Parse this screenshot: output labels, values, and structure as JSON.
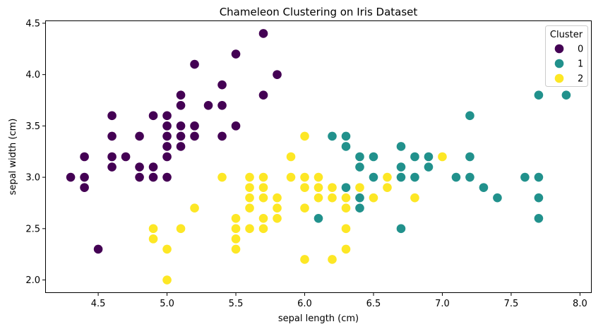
{
  "chart_data": {
    "type": "scatter",
    "title": "Chameleon Clustering on Iris Dataset",
    "xlabel": "sepal length (cm)",
    "ylabel": "sepal width (cm)",
    "xlim": [
      4.12,
      8.08
    ],
    "ylim": [
      1.88,
      4.52
    ],
    "xticks": [
      "4.5",
      "5.0",
      "5.5",
      "6.0",
      "6.5",
      "7.0",
      "7.5",
      "8.0"
    ],
    "yticks": [
      "2.0",
      "2.5",
      "3.0",
      "3.5",
      "4.0",
      "4.5"
    ],
    "grid": false,
    "legend": {
      "title": "Cluster",
      "position": "top-right"
    },
    "series": [
      {
        "name": "0",
        "color": "#440154",
        "points": [
          [
            4.3,
            3.0
          ],
          [
            4.4,
            2.9
          ],
          [
            4.4,
            3.0
          ],
          [
            4.4,
            3.2
          ],
          [
            4.5,
            2.3
          ],
          [
            4.6,
            3.1
          ],
          [
            4.6,
            3.2
          ],
          [
            4.6,
            3.4
          ],
          [
            4.6,
            3.6
          ],
          [
            4.7,
            3.2
          ],
          [
            4.8,
            3.0
          ],
          [
            4.8,
            3.1
          ],
          [
            4.8,
            3.4
          ],
          [
            4.9,
            3.0
          ],
          [
            4.9,
            3.1
          ],
          [
            4.9,
            3.6
          ],
          [
            5.0,
            3.0
          ],
          [
            5.0,
            3.2
          ],
          [
            5.0,
            3.3
          ],
          [
            5.0,
            3.4
          ],
          [
            5.0,
            3.5
          ],
          [
            5.0,
            3.6
          ],
          [
            5.1,
            3.3
          ],
          [
            5.1,
            3.4
          ],
          [
            5.1,
            3.5
          ],
          [
            5.1,
            3.7
          ],
          [
            5.1,
            3.8
          ],
          [
            5.2,
            3.4
          ],
          [
            5.2,
            3.5
          ],
          [
            5.2,
            4.1
          ],
          [
            5.3,
            3.7
          ],
          [
            5.4,
            3.4
          ],
          [
            5.4,
            3.7
          ],
          [
            5.4,
            3.9
          ],
          [
            5.5,
            3.5
          ],
          [
            5.5,
            4.2
          ],
          [
            5.7,
            3.8
          ],
          [
            5.7,
            4.4
          ],
          [
            5.8,
            4.0
          ]
        ]
      },
      {
        "name": "1",
        "color": "#21918c",
        "points": [
          [
            6.1,
            2.6
          ],
          [
            6.2,
            3.4
          ],
          [
            6.3,
            2.9
          ],
          [
            6.3,
            3.3
          ],
          [
            6.3,
            3.4
          ],
          [
            6.4,
            2.7
          ],
          [
            6.4,
            2.8
          ],
          [
            6.4,
            3.1
          ],
          [
            6.4,
            3.2
          ],
          [
            6.5,
            3.0
          ],
          [
            6.5,
            3.2
          ],
          [
            6.7,
            2.5
          ],
          [
            6.7,
            3.0
          ],
          [
            6.7,
            3.1
          ],
          [
            6.7,
            3.3
          ],
          [
            6.8,
            3.0
          ],
          [
            6.8,
            3.2
          ],
          [
            6.9,
            3.1
          ],
          [
            6.9,
            3.2
          ],
          [
            7.1,
            3.0
          ],
          [
            7.2,
            3.0
          ],
          [
            7.2,
            3.2
          ],
          [
            7.2,
            3.6
          ],
          [
            7.3,
            2.9
          ],
          [
            7.4,
            2.8
          ],
          [
            7.6,
            3.0
          ],
          [
            7.7,
            2.6
          ],
          [
            7.7,
            2.8
          ],
          [
            7.7,
            3.0
          ],
          [
            7.7,
            3.8
          ],
          [
            7.9,
            3.8
          ]
        ]
      },
      {
        "name": "2",
        "color": "#fde725",
        "points": [
          [
            4.9,
            2.4
          ],
          [
            4.9,
            2.5
          ],
          [
            5.0,
            2.0
          ],
          [
            5.0,
            2.3
          ],
          [
            5.1,
            2.5
          ],
          [
            5.2,
            2.7
          ],
          [
            5.4,
            3.0
          ],
          [
            5.5,
            2.3
          ],
          [
            5.5,
            2.4
          ],
          [
            5.5,
            2.5
          ],
          [
            5.5,
            2.6
          ],
          [
            5.6,
            2.5
          ],
          [
            5.6,
            2.7
          ],
          [
            5.6,
            2.8
          ],
          [
            5.6,
            2.9
          ],
          [
            5.6,
            3.0
          ],
          [
            5.7,
            2.5
          ],
          [
            5.7,
            2.6
          ],
          [
            5.7,
            2.8
          ],
          [
            5.7,
            2.9
          ],
          [
            5.7,
            3.0
          ],
          [
            5.8,
            2.6
          ],
          [
            5.8,
            2.7
          ],
          [
            5.8,
            2.8
          ],
          [
            5.9,
            3.0
          ],
          [
            5.9,
            3.2
          ],
          [
            6.0,
            2.2
          ],
          [
            6.0,
            2.7
          ],
          [
            6.0,
            2.9
          ],
          [
            6.0,
            3.0
          ],
          [
            6.0,
            3.4
          ],
          [
            6.1,
            2.8
          ],
          [
            6.1,
            2.9
          ],
          [
            6.1,
            3.0
          ],
          [
            6.2,
            2.2
          ],
          [
            6.2,
            2.8
          ],
          [
            6.2,
            2.9
          ],
          [
            6.3,
            2.3
          ],
          [
            6.3,
            2.5
          ],
          [
            6.3,
            2.7
          ],
          [
            6.3,
            2.8
          ],
          [
            6.4,
            2.9
          ],
          [
            6.5,
            2.8
          ],
          [
            6.6,
            2.9
          ],
          [
            6.6,
            3.0
          ],
          [
            6.8,
            2.8
          ],
          [
            7.0,
            3.2
          ]
        ]
      }
    ]
  }
}
